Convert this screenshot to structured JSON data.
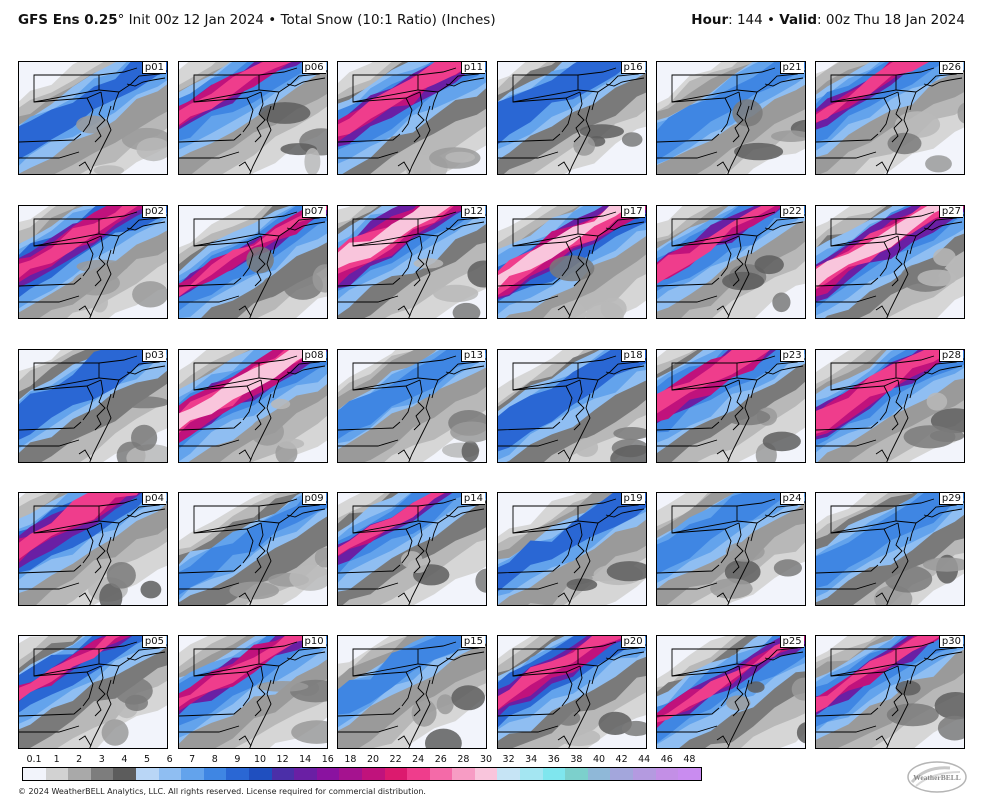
{
  "header": {
    "model": "GFS Ens 0.25",
    "degree": "°",
    "init": " Init 00z 12 Jan 2024",
    "bullet1": " • ",
    "field": "Total Snow (10:1 Ratio) (Inches)",
    "hour_label": "Hour",
    "hour_value": ": 144",
    "bullet2": " • ",
    "valid_label": "Valid",
    "valid_value": ": 00z Thu 18 Jan 2024"
  },
  "panels": [
    {
      "label": "p01",
      "mag": 0.9
    },
    {
      "label": "p06",
      "mag": 1.6
    },
    {
      "label": "p11",
      "mag": 1.7
    },
    {
      "label": "p16",
      "mag": 1.2
    },
    {
      "label": "p21",
      "mag": 0.8
    },
    {
      "label": "p26",
      "mag": 1.4
    },
    {
      "label": "p02",
      "mag": 1.8
    },
    {
      "label": "p07",
      "mag": 1.3
    },
    {
      "label": "p12",
      "mag": 2.3
    },
    {
      "label": "p17",
      "mag": 2.0
    },
    {
      "label": "p22",
      "mag": 1.5
    },
    {
      "label": "p27",
      "mag": 2.1
    },
    {
      "label": "p03",
      "mag": 1.2
    },
    {
      "label": "p08",
      "mag": 2.1
    },
    {
      "label": "p13",
      "mag": 0.6
    },
    {
      "label": "p18",
      "mag": 1.1
    },
    {
      "label": "p23",
      "mag": 1.9
    },
    {
      "label": "p28",
      "mag": 1.8
    },
    {
      "label": "p04",
      "mag": 1.9
    },
    {
      "label": "p09",
      "mag": 0.4
    },
    {
      "label": "p14",
      "mag": 1.3
    },
    {
      "label": "p19",
      "mag": 0.5
    },
    {
      "label": "p24",
      "mag": 0.9
    },
    {
      "label": "p29",
      "mag": 1.0
    },
    {
      "label": "p05",
      "mag": 1.3
    },
    {
      "label": "p10",
      "mag": 1.6
    },
    {
      "label": "p15",
      "mag": 0.4
    },
    {
      "label": "p20",
      "mag": 1.7
    },
    {
      "label": "p25",
      "mag": 1.3
    },
    {
      "label": "p30",
      "mag": 1.5
    }
  ],
  "legend": {
    "labels": [
      "0.1",
      "1",
      "2",
      "3",
      "4",
      "5",
      "6",
      "7",
      "8",
      "9",
      "10",
      "12",
      "14",
      "16",
      "18",
      "20",
      "22",
      "24",
      "26",
      "28",
      "30",
      "32",
      "34",
      "36",
      "38",
      "40",
      "42",
      "44",
      "46",
      "48"
    ],
    "colors": [
      "#f2f4fb",
      "#d2d2d2",
      "#a9a9a9",
      "#7d7d7d",
      "#5c5c5c",
      "#b9d6f6",
      "#8fbef2",
      "#63a3ec",
      "#3f86e3",
      "#2a67d4",
      "#1f4fbf",
      "#4b2fa8",
      "#6a1fa4",
      "#8a12a0",
      "#a5128f",
      "#c0127c",
      "#dc1a6e",
      "#ef3d8c",
      "#f46aa8",
      "#f79cc4",
      "#f9c5dc",
      "#c6e4f5",
      "#a4e6f2",
      "#7fe6ee",
      "#7cd0cc",
      "#8fb8d8",
      "#a3a6dc",
      "#b49ae0",
      "#c38fe6",
      "#c98cf0"
    ]
  },
  "footer": "© 2024 WeatherBELL Analytics, LLC. All rights reserved. License required for commercial distribution.",
  "logo_text": "WeatherBELL"
}
